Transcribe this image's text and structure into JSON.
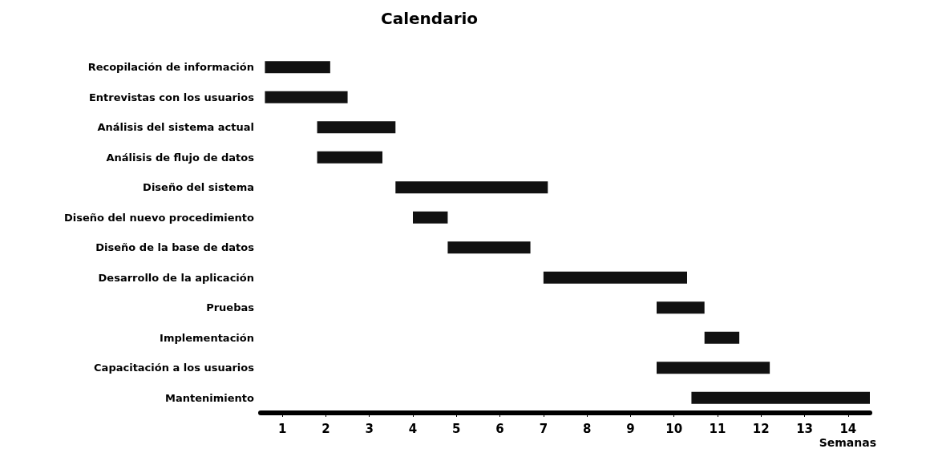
{
  "chart_data": {
    "type": "bar",
    "orientation": "horizontal",
    "title": "Calendario",
    "xlabel": "Semanas",
    "categories": [
      "Recopilación de información",
      "Entrevistas con los usuarios",
      "Análisis del sistema actual",
      "Análisis de flujo de datos",
      "Diseño del sistema",
      "Diseño del nuevo procedimiento",
      "Diseño de la base de datos",
      "Desarrollo de la aplicación",
      "Pruebas",
      "Implementación",
      "Capacitación a los usuarios",
      "Mantenimiento"
    ],
    "base": [
      0.6,
      0.6,
      1.8,
      1.8,
      3.6,
      4.0,
      4.8,
      7.0,
      9.6,
      10.7,
      9.6,
      10.4
    ],
    "values": [
      1.5,
      1.9,
      1.8,
      1.5,
      3.5,
      0.8,
      1.9,
      3.3,
      1.1,
      0.8,
      2.6,
      4.1
    ],
    "color": "#111111",
    "xlim": [
      0.5,
      14.5
    ],
    "xticks": [
      1,
      2,
      3,
      4,
      5,
      6,
      7,
      8,
      9,
      10,
      11,
      12,
      13,
      14
    ],
    "grid": false
  }
}
